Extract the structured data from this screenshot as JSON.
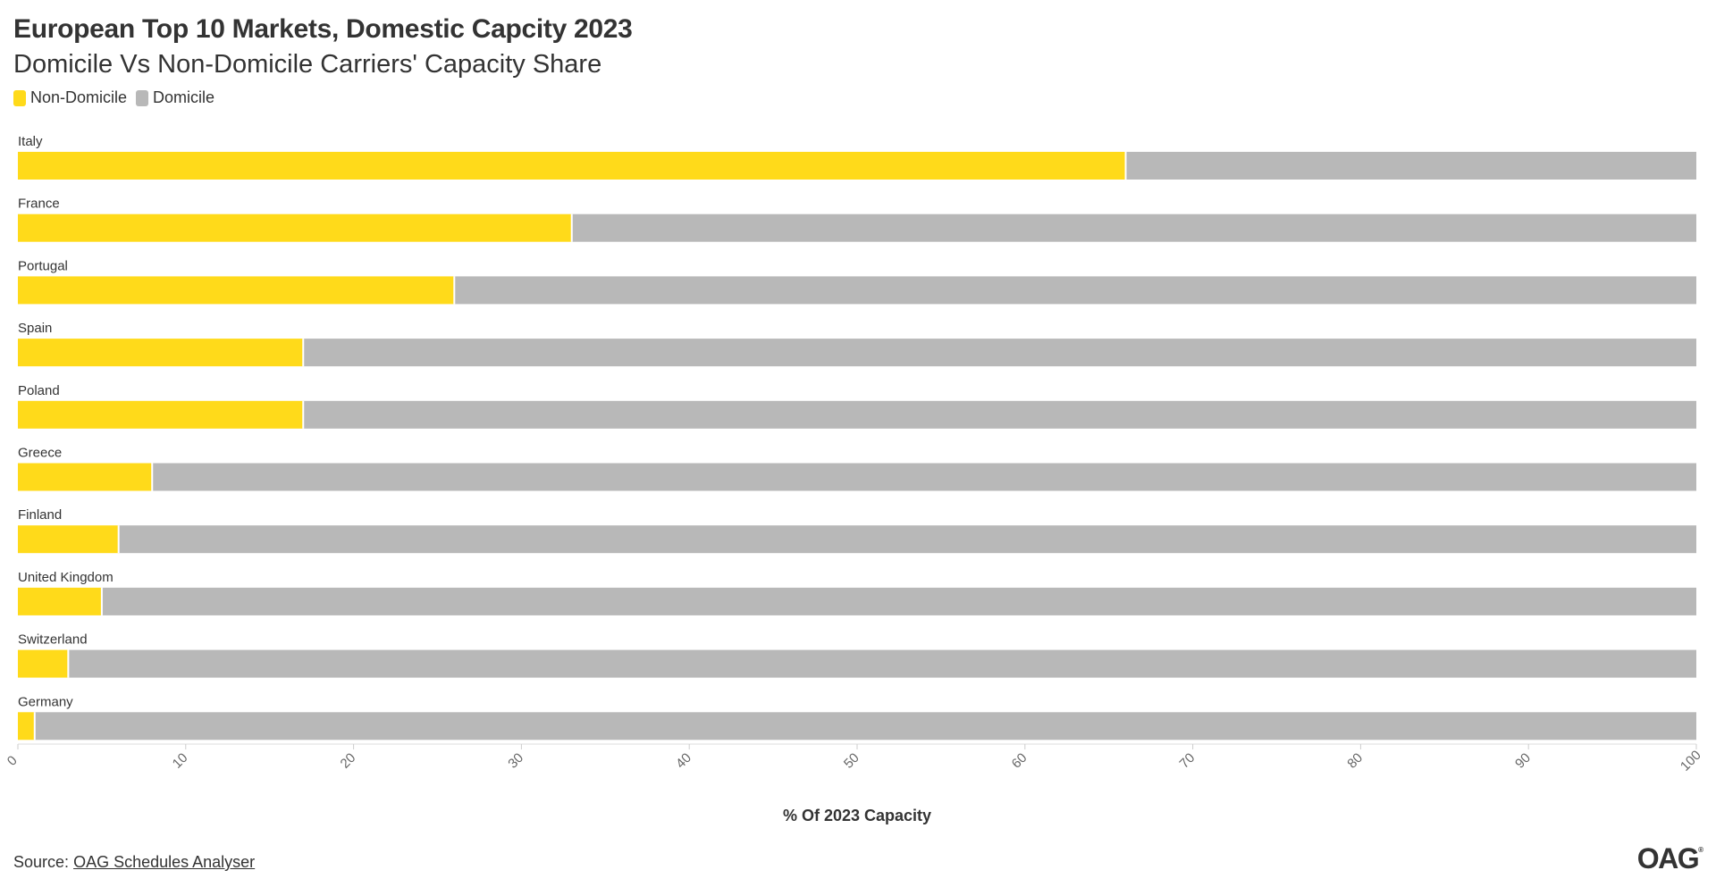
{
  "header": {
    "title": "European Top 10 Markets, Domestic Capcity 2023",
    "subtitle": "Domicile Vs Non-Domicile Carriers' Capacity Share"
  },
  "legend": {
    "items": [
      {
        "label": "Non-Domicile",
        "color": "#FFDA1A"
      },
      {
        "label": "Domicile",
        "color": "#B8B8B8"
      }
    ]
  },
  "chart_data": {
    "type": "bar",
    "orientation": "horizontal",
    "stacked": true,
    "title": "European Top 10 Markets, Domestic Capcity 2023",
    "subtitle": "Domicile Vs Non-Domicile Carriers' Capacity Share",
    "categories": [
      "Italy",
      "France",
      "Portugal",
      "Spain",
      "Poland",
      "Greece",
      "Finland",
      "United Kingdom",
      "Switzerland",
      "Germany"
    ],
    "series": [
      {
        "name": "Non-Domicile",
        "color": "#FFDA1A",
        "values": [
          66,
          33,
          26,
          17,
          17,
          8,
          6,
          5,
          3,
          1
        ]
      },
      {
        "name": "Domicile",
        "color": "#B8B8B8",
        "values": [
          34,
          67,
          74,
          83,
          83,
          92,
          94,
          95,
          97,
          99
        ]
      }
    ],
    "xlabel": "% Of 2023 Capacity",
    "ylabel": "",
    "xlim": [
      0,
      100
    ],
    "xticks": [
      "0",
      "10",
      "20",
      "30",
      "40",
      "50",
      "60",
      "70",
      "80",
      "90",
      "100"
    ],
    "grid": false,
    "legend_position": "top-left"
  },
  "footer": {
    "source_prefix": "Source:",
    "source_link": "OAG Schedules Analyser",
    "logo": "OAG",
    "logo_mark": "®"
  }
}
